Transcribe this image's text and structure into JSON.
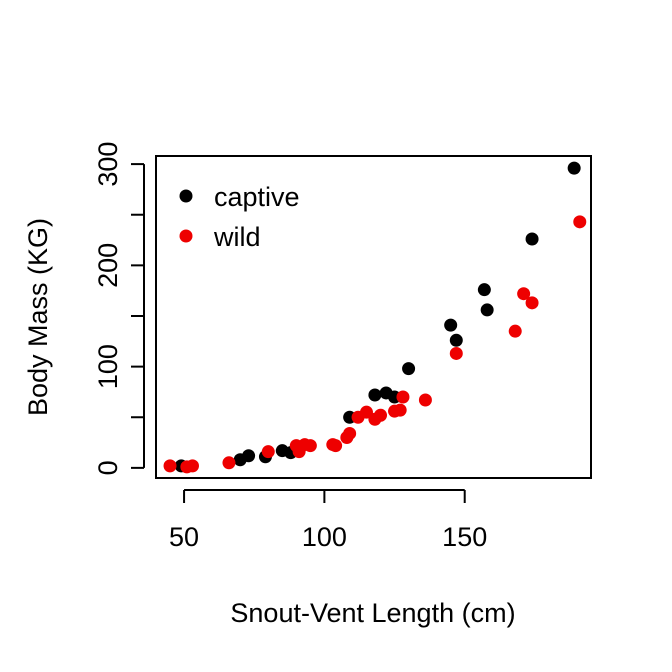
{
  "chart_data": {
    "type": "scatter",
    "xlabel": "Snout-Vent Length (cm)",
    "ylabel": "Body Mass (KG)",
    "xlim": [
      40,
      195
    ],
    "ylim": [
      -10,
      308
    ],
    "x_ticks": [
      50,
      100,
      150
    ],
    "y_ticks": [
      0,
      100,
      200,
      300
    ],
    "y_minor_ticks": [
      50,
      150,
      250
    ],
    "grid": false,
    "legend_position": "top-left",
    "series": [
      {
        "name": "captive",
        "color": "#000000",
        "points": [
          [
            49,
            2
          ],
          [
            70,
            8
          ],
          [
            73,
            12
          ],
          [
            79,
            11
          ],
          [
            85,
            17
          ],
          [
            88,
            15
          ],
          [
            109,
            50
          ],
          [
            118,
            72
          ],
          [
            122,
            74
          ],
          [
            125,
            70
          ],
          [
            130,
            98
          ],
          [
            145,
            141
          ],
          [
            147,
            126
          ],
          [
            157,
            176
          ],
          [
            158,
            156
          ],
          [
            174,
            226
          ],
          [
            189,
            296
          ]
        ]
      },
      {
        "name": "wild",
        "color": "#ee0000",
        "points": [
          [
            45,
            2
          ],
          [
            51,
            1
          ],
          [
            53,
            2
          ],
          [
            66,
            5
          ],
          [
            80,
            16
          ],
          [
            90,
            22
          ],
          [
            91,
            16
          ],
          [
            93,
            23
          ],
          [
            95,
            22
          ],
          [
            103,
            23
          ],
          [
            104,
            22
          ],
          [
            108,
            30
          ],
          [
            109,
            34
          ],
          [
            112,
            50
          ],
          [
            115,
            55
          ],
          [
            118,
            48
          ],
          [
            120,
            52
          ],
          [
            125,
            56
          ],
          [
            127,
            57
          ],
          [
            128,
            70
          ],
          [
            136,
            67
          ],
          [
            147,
            113
          ],
          [
            168,
            135
          ],
          [
            171,
            172
          ],
          [
            174,
            163
          ],
          [
            191,
            243
          ]
        ]
      }
    ]
  }
}
